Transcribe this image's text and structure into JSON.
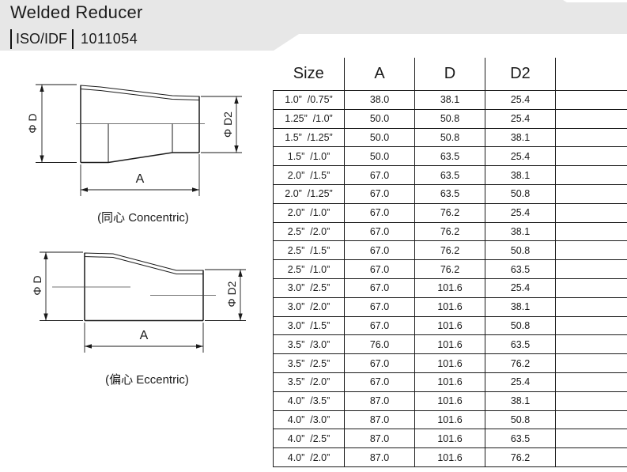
{
  "header": {
    "title": "Welded Reducer",
    "standard_label": "ISO/IDF",
    "standard_code": "1011054"
  },
  "diagrams": {
    "concentric": {
      "dim_d": "Φ D",
      "dim_d2": "Φ D2",
      "dim_a": "A",
      "caption": "(同心 Concentric)"
    },
    "eccentric": {
      "dim_d": "Φ D",
      "dim_d2": "Φ D2",
      "dim_a": "A",
      "caption": "(偏心 Eccentric)"
    }
  },
  "table": {
    "columns": [
      "Size",
      "A",
      "D",
      "D2",
      ""
    ],
    "rows": [
      [
        "1.0”  /0.75”",
        "38.0",
        "38.1",
        "25.4",
        ""
      ],
      [
        "1.25”  /1.0”",
        "50.0",
        "50.8",
        "25.4",
        ""
      ],
      [
        "1.5”  /1.25”",
        "50.0",
        "50.8",
        "38.1",
        ""
      ],
      [
        "1.5”  /1.0”",
        "50.0",
        "63.5",
        "25.4",
        ""
      ],
      [
        "2.0”  /1.5”",
        "67.0",
        "63.5",
        "38.1",
        ""
      ],
      [
        "2.0”  /1.25”",
        "67.0",
        "63.5",
        "50.8",
        ""
      ],
      [
        "2.0”  /1.0”",
        "67.0",
        "76.2",
        "25.4",
        ""
      ],
      [
        "2.5”  /2.0”",
        "67.0",
        "76.2",
        "38.1",
        ""
      ],
      [
        "2.5”  /1.5”",
        "67.0",
        "76.2",
        "50.8",
        ""
      ],
      [
        "2.5”  /1.0”",
        "67.0",
        "76.2",
        "63.5",
        ""
      ],
      [
        "3.0”  /2.5”",
        "67.0",
        "101.6",
        "25.4",
        ""
      ],
      [
        "3.0”  /2.0”",
        "67.0",
        "101.6",
        "38.1",
        ""
      ],
      [
        "3.0”  /1.5”",
        "67.0",
        "101.6",
        "50.8",
        ""
      ],
      [
        "3.5”  /3.0”",
        "76.0",
        "101.6",
        "63.5",
        ""
      ],
      [
        "3.5”  /2.5”",
        "67.0",
        "101.6",
        "76.2",
        ""
      ],
      [
        "3.5”  /2.0”",
        "67.0",
        "101.6",
        "25.4",
        ""
      ],
      [
        "4.0”  /3.5”",
        "87.0",
        "101.6",
        "38.1",
        ""
      ],
      [
        "4.0”  /3.0”",
        "87.0",
        "101.6",
        "50.8",
        ""
      ],
      [
        "4.0”  /2.5”",
        "87.0",
        "101.6",
        "63.5",
        ""
      ],
      [
        "4.0”  /2.0”",
        "87.0",
        "101.6",
        "76.2",
        ""
      ]
    ]
  }
}
